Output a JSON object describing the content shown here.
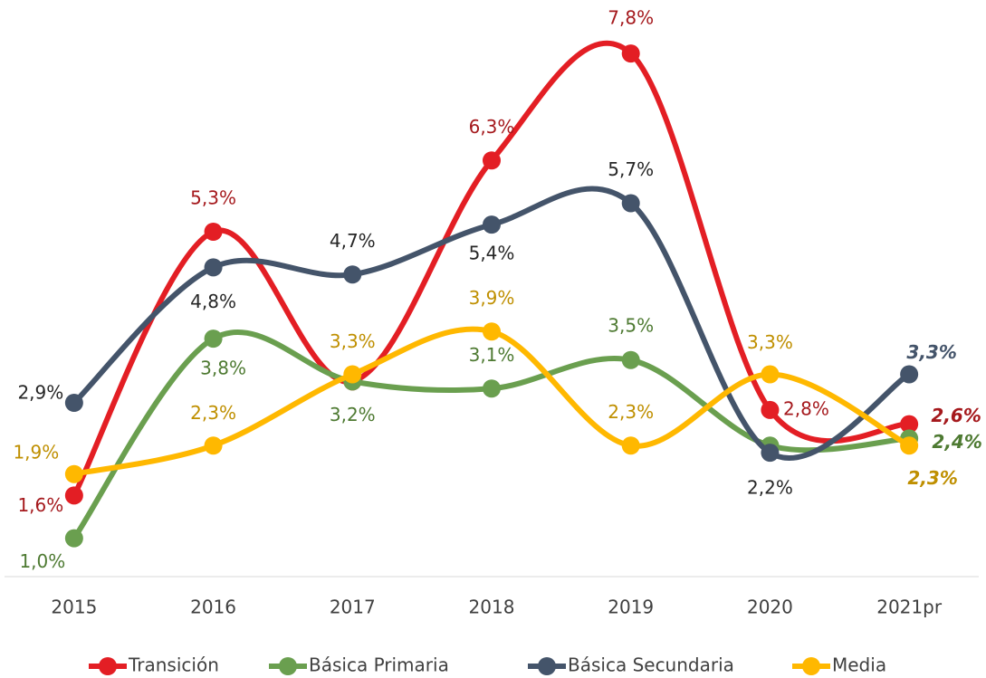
{
  "chart_data": {
    "type": "line",
    "categories": [
      "2015",
      "2016",
      "2017",
      "2018",
      "2019",
      "2020",
      "2021pr"
    ],
    "ylim": [
      0.5,
      8.5
    ],
    "series": [
      {
        "name": "Transición",
        "color": "#e31e24",
        "label_color": "#a5191d",
        "values": [
          1.6,
          5.3,
          3.2,
          6.3,
          7.8,
          2.8,
          2.6
        ],
        "value_labels": [
          "1,6%",
          "5,3%",
          null,
          "6,3%",
          "7,8%",
          "2,8%",
          "2,6%"
        ]
      },
      {
        "name": "Básica Primaria",
        "color": "#6a9f4f",
        "label_color": "#4e7a32",
        "values": [
          1.0,
          3.8,
          3.2,
          3.1,
          3.5,
          2.3,
          2.4
        ],
        "value_labels": [
          "1,0%",
          "3,8%",
          "3,2%",
          "3,1%",
          "3,5%",
          null,
          "2,4%"
        ]
      },
      {
        "name": "Básica Secundaria",
        "color": "#44546a",
        "label_color": "#262626",
        "values": [
          2.9,
          4.8,
          4.7,
          5.4,
          5.7,
          2.2,
          3.3
        ],
        "value_labels": [
          "2,9%",
          "4,8%",
          "4,7%",
          "5,4%",
          "5,7%",
          "2,2%",
          "3,3%"
        ]
      },
      {
        "name": "Media",
        "color": "#ffb800",
        "label_color": "#bf8f00",
        "values": [
          1.9,
          2.3,
          3.3,
          3.9,
          2.3,
          3.3,
          2.3
        ],
        "value_labels": [
          "1,9%",
          "2,3%",
          "3,3%",
          "3,9%",
          "2,3%",
          "3,3%",
          "2,3%"
        ]
      }
    ]
  }
}
